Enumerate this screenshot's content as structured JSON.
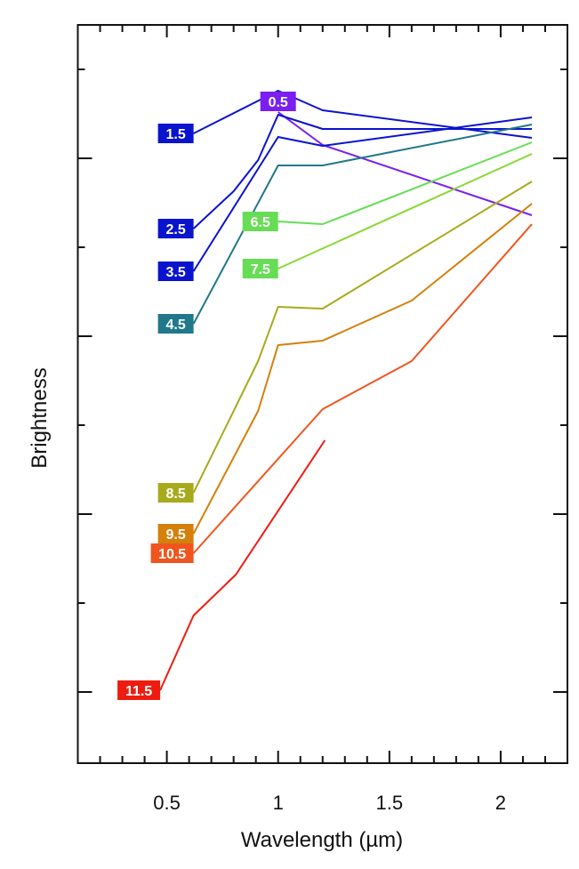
{
  "chart_data": {
    "type": "line",
    "title": "",
    "xlabel": "Wavelength (µm)",
    "ylabel": "Brightness",
    "xlim": [
      0.1,
      2.3
    ],
    "ylim": [
      0,
      4.15
    ],
    "x_ticks": [
      0.5,
      1,
      1.5,
      2
    ],
    "x_tick_labels": [
      "0.5",
      "1",
      "1.5",
      "2"
    ],
    "x_minor_step": 0.1,
    "y_major_ticks": [
      0.4,
      1.4,
      2.4,
      3.4
    ],
    "y_minor_ticks": [
      0.9,
      1.9,
      2.9,
      3.9
    ],
    "y_tick_labels_shown": false,
    "grid": false,
    "legend": "inline-labels",
    "series": [
      {
        "name": "0.5",
        "color": "#7a1ff0",
        "label_anchor": "top-center",
        "points": [
          [
            1.0,
            3.66
          ],
          [
            1.2,
            3.475
          ],
          [
            2.14,
            3.08
          ]
        ]
      },
      {
        "name": "1.5",
        "color": "#0a14cc",
        "label_anchor": "left",
        "points": [
          [
            0.62,
            3.54
          ],
          [
            1.0,
            3.78
          ],
          [
            1.2,
            3.67
          ],
          [
            2.14,
            3.515
          ]
        ]
      },
      {
        "name": "2.5",
        "color": "#0a14cc",
        "label_anchor": "left",
        "points": [
          [
            0.62,
            3.005
          ],
          [
            0.8,
            3.215
          ],
          [
            0.91,
            3.39
          ],
          [
            1.0,
            3.645
          ],
          [
            1.2,
            3.565
          ],
          [
            2.14,
            3.565
          ]
        ]
      },
      {
        "name": "3.5",
        "color": "#0a14cc",
        "label_anchor": "left",
        "points": [
          [
            0.62,
            2.765
          ],
          [
            1.0,
            3.52
          ],
          [
            1.2,
            3.47
          ],
          [
            2.14,
            3.63
          ]
        ]
      },
      {
        "name": "4.5",
        "color": "#21788a",
        "label_anchor": "left",
        "points": [
          [
            0.62,
            2.47
          ],
          [
            1.0,
            3.36
          ],
          [
            1.2,
            3.36
          ],
          [
            2.14,
            3.59
          ]
        ]
      },
      {
        "name": "6.5",
        "color": "#66dd55",
        "label_anchor": "left",
        "points": [
          [
            1.0,
            3.045
          ],
          [
            1.2,
            3.03
          ],
          [
            2.14,
            3.49
          ]
        ]
      },
      {
        "name": "7.5",
        "color": "#88d833",
        "label_color": "#66dd55",
        "label_anchor": "left",
        "points": [
          [
            1.0,
            2.78
          ],
          [
            2.14,
            3.425
          ]
        ]
      },
      {
        "name": "8.5",
        "color": "#a8aa1e",
        "label_anchor": "left",
        "points": [
          [
            0.62,
            1.52
          ],
          [
            0.91,
            2.26
          ],
          [
            1.0,
            2.565
          ],
          [
            1.2,
            2.555
          ],
          [
            2.14,
            3.27
          ]
        ]
      },
      {
        "name": "9.5",
        "color": "#d4800a",
        "label_anchor": "left",
        "points": [
          [
            0.62,
            1.29
          ],
          [
            0.91,
            1.98
          ],
          [
            1.0,
            2.35
          ],
          [
            1.2,
            2.375
          ],
          [
            1.6,
            2.6
          ],
          [
            2.14,
            3.145
          ]
        ]
      },
      {
        "name": "10.5",
        "color": "#f0551e",
        "label_anchor": "left",
        "points": [
          [
            0.62,
            1.18
          ],
          [
            1.2,
            1.99
          ],
          [
            1.6,
            2.26
          ],
          [
            2.14,
            3.03
          ]
        ]
      },
      {
        "name": "11.5",
        "color": "#ee1c10",
        "label_anchor": "left",
        "points": [
          [
            0.47,
            0.41
          ],
          [
            0.62,
            0.83
          ],
          [
            0.81,
            1.06
          ],
          [
            1.21,
            1.815
          ]
        ]
      }
    ]
  }
}
